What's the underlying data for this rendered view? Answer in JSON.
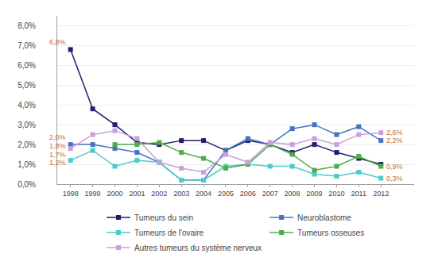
{
  "chart_data": {
    "type": "line",
    "x": [
      1998,
      1999,
      2000,
      2001,
      2002,
      2003,
      2004,
      2005,
      2006,
      2007,
      2008,
      2009,
      2010,
      2011,
      2012
    ],
    "series": [
      {
        "name": "Tumeurs du sein",
        "color": "#1f1f6e",
        "marker": "square",
        "line_style": "solid",
        "values": [
          6.8,
          3.8,
          3.0,
          2.1,
          2.0,
          2.2,
          2.2,
          1.7,
          2.2,
          2.0,
          1.6,
          2.0,
          1.6,
          1.3,
          1.0
        ]
      },
      {
        "name": "Neuroblastome",
        "color": "#4472c4",
        "marker": "square",
        "line_style": "solid",
        "values": [
          2.0,
          2.0,
          1.8,
          1.6,
          1.1,
          0.2,
          0.2,
          1.7,
          2.3,
          2.0,
          2.8,
          3.0,
          2.5,
          2.9,
          2.2
        ]
      },
      {
        "name": "Tumeurs de l'ovaire",
        "color": "#4ecac8",
        "marker": "square",
        "line_style": "solid",
        "values": [
          1.2,
          1.7,
          0.9,
          1.2,
          1.1,
          0.2,
          0.2,
          0.9,
          1.0,
          0.9,
          0.9,
          0.5,
          0.4,
          0.6,
          0.3
        ]
      },
      {
        "name": "Tumeurs osseuses",
        "color": "#4fac47",
        "marker": "square",
        "line_style": "solid",
        "values": [
          null,
          null,
          2.0,
          2.0,
          2.1,
          1.6,
          1.3,
          0.8,
          1.0,
          2.0,
          1.5,
          0.7,
          0.9,
          1.4,
          0.9
        ]
      },
      {
        "name": "Autres tumeurs du système nerveux",
        "color": "#c9a0dc",
        "marker": "square",
        "line_style": "solid",
        "values": [
          1.8,
          2.5,
          2.7,
          2.3,
          1.1,
          0.8,
          0.6,
          1.5,
          1.1,
          2.1,
          2.0,
          2.3,
          2.0,
          2.5,
          2.6
        ]
      }
    ],
    "xlim": [
      1997.4,
      2013.5
    ],
    "xticks": [
      1998,
      1999,
      2000,
      2001,
      2002,
      2003,
      2004,
      2005,
      2006,
      2007,
      2008,
      2009,
      2010,
      2011,
      2012
    ],
    "ylim": [
      0.0,
      8.5
    ],
    "yticks": [
      {
        "value": 0.0,
        "label": "0,0%"
      },
      {
        "value": 1.0,
        "label": "1,0%"
      },
      {
        "value": 2.0,
        "label": "2,0%"
      },
      {
        "value": 3.0,
        "label": "3,0%"
      },
      {
        "value": 4.0,
        "label": "4,0%"
      },
      {
        "value": 5.0,
        "label": "5,0%"
      },
      {
        "value": 6.0,
        "label": "6,0%"
      },
      {
        "value": 7.0,
        "label": "7,0%"
      },
      {
        "value": 8.0,
        "label": "8,0%"
      }
    ],
    "grid": "y",
    "legend": "bottom",
    "annotations": [
      {
        "text": "6,8%",
        "x": 1998,
        "y": 6.8,
        "side": "left",
        "color": "#c07030"
      },
      {
        "text": "2,0%",
        "x": 1998,
        "y": 2.0,
        "side": "left",
        "color": "#c07030"
      },
      {
        "text": "1,8%",
        "x": 1998,
        "y": 1.8,
        "side": "left",
        "color": "#c07030"
      },
      {
        "text": "1,7%",
        "x": 1998,
        "y": 1.7,
        "side": "left",
        "color": "#c07030"
      },
      {
        "text": "1,2%",
        "x": 1998,
        "y": 1.2,
        "side": "left",
        "color": "#c07030"
      },
      {
        "text": "2,6%",
        "x": 2012,
        "y": 2.6,
        "side": "right",
        "color": "#c07030"
      },
      {
        "text": "2,2%",
        "x": 2012,
        "y": 2.2,
        "side": "right",
        "color": "#c07030"
      },
      {
        "text": "0,9%",
        "x": 2012,
        "y": 0.9,
        "side": "right",
        "color": "#c07030"
      },
      {
        "text": "0,3%",
        "x": 2012,
        "y": 0.3,
        "side": "right",
        "color": "#c07030"
      }
    ]
  }
}
